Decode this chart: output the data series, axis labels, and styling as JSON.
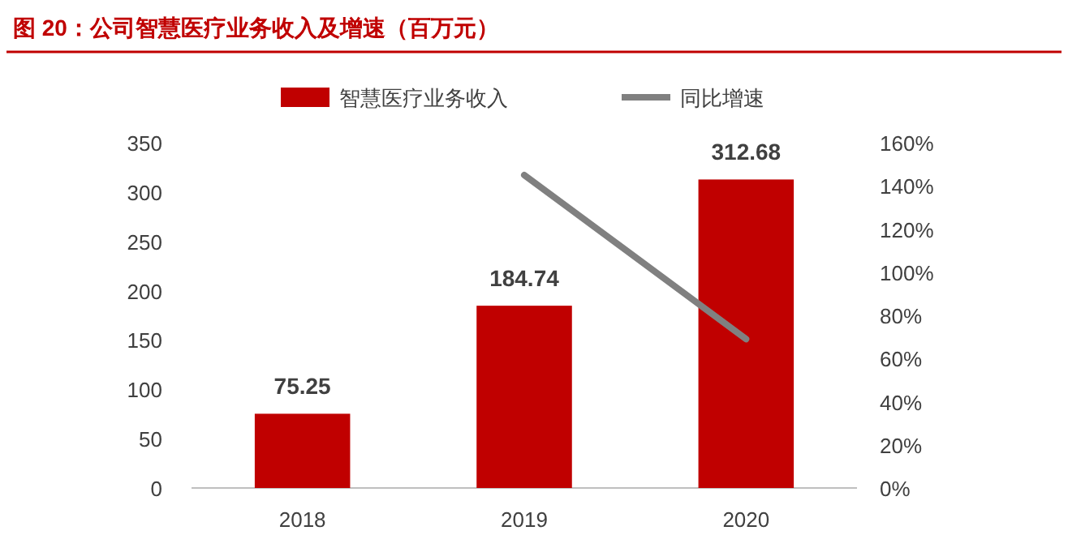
{
  "chart_data": {
    "type": "bar",
    "title": "图 20：公司智慧医疗业务收入及增速（百万元）",
    "categories": [
      "2018",
      "2019",
      "2020"
    ],
    "series": [
      {
        "name": "智慧医疗业务收入",
        "color": "#c00000",
        "values": [
          75.25,
          184.74,
          312.68
        ],
        "value_labels": [
          "75.25",
          "184.74",
          "312.68"
        ]
      },
      {
        "name": "同比增速",
        "type": "line",
        "axis": "y2",
        "color": "#808080",
        "values": [
          null,
          145,
          69
        ]
      }
    ],
    "ylim": [
      0,
      350
    ],
    "yticks": [
      0,
      50,
      100,
      150,
      200,
      250,
      300,
      350
    ],
    "y2lim": [
      0,
      160
    ],
    "y2ticks": [
      {
        "value": 0,
        "label": "0%"
      },
      {
        "value": 20,
        "label": "20%"
      },
      {
        "value": 40,
        "label": "40%"
      },
      {
        "value": 60,
        "label": "60%"
      },
      {
        "value": 80,
        "label": "80%"
      },
      {
        "value": 100,
        "label": "100%"
      },
      {
        "value": 120,
        "label": "120%"
      },
      {
        "value": 140,
        "label": "140%"
      },
      {
        "value": 160,
        "label": "160%"
      }
    ],
    "legend": "top",
    "grid": false
  }
}
